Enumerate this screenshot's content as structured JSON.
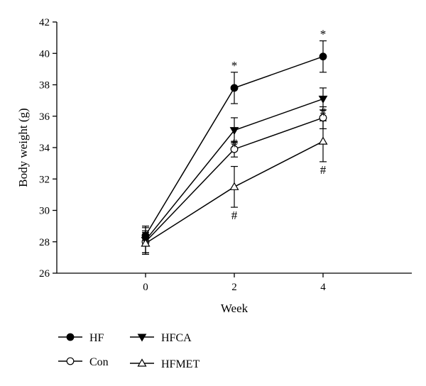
{
  "chart_data": {
    "type": "line",
    "xlabel": "Week",
    "ylabel": "Body weight (g)",
    "x": [
      0,
      2,
      4
    ],
    "xlim": [
      -2,
      6
    ],
    "ylim": [
      26,
      42
    ],
    "xticks": [
      0,
      2,
      4
    ],
    "yticks": [
      26,
      28,
      30,
      32,
      34,
      36,
      38,
      40,
      42
    ],
    "grid": false,
    "legend_position": "bottom-left",
    "series": [
      {
        "name": "HF",
        "marker": "filled-circle",
        "values": [
          28.4,
          37.8,
          39.8
        ],
        "errors": [
          0.6,
          1.0,
          1.0
        ]
      },
      {
        "name": "Con",
        "marker": "open-circle",
        "values": [
          28.0,
          33.9,
          35.9
        ],
        "errors": [
          0.7,
          0.5,
          0.7
        ]
      },
      {
        "name": "HFCA",
        "marker": "filled-triangle-down",
        "values": [
          28.1,
          35.1,
          37.1
        ],
        "errors": [
          0.8,
          0.8,
          0.7
        ]
      },
      {
        "name": "HFMET",
        "marker": "open-triangle-up",
        "values": [
          27.9,
          31.5,
          34.4
        ],
        "errors": [
          0.7,
          1.3,
          1.3
        ]
      }
    ],
    "annotations": [
      {
        "text": "*",
        "x": 2,
        "series": "HF"
      },
      {
        "text": "*",
        "x": 4,
        "series": "HF"
      },
      {
        "text": "#",
        "x": 2,
        "series": "HFCA"
      },
      {
        "text": "#",
        "x": 4,
        "series": "HFCA"
      },
      {
        "text": "#",
        "x": 2,
        "series": "HFMET"
      },
      {
        "text": "#",
        "x": 4,
        "series": "HFMET"
      }
    ]
  }
}
